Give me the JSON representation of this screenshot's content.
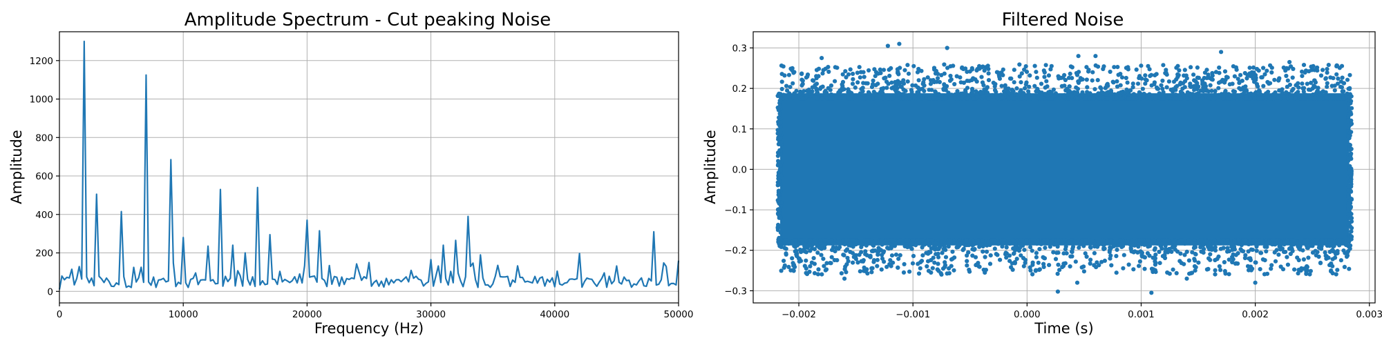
{
  "chart_data": [
    {
      "type": "line",
      "title": "Amplitude Spectrum - Cut peaking Noise",
      "xlabel": "Frequency (Hz)",
      "ylabel": "Amplitude",
      "xlim": [
        0,
        50000
      ],
      "ylim": [
        -60,
        1350
      ],
      "xticks": [
        0,
        10000,
        20000,
        30000,
        40000,
        50000
      ],
      "yticks": [
        0,
        200,
        400,
        600,
        800,
        1000,
        1200
      ],
      "grid": true,
      "color": "#1f77b4",
      "baseline_range": [
        20,
        80
      ],
      "peaks": [
        {
          "x": 2000,
          "y": 1300
        },
        {
          "x": 3000,
          "y": 505
        },
        {
          "x": 5000,
          "y": 415
        },
        {
          "x": 7000,
          "y": 1125
        },
        {
          "x": 9000,
          "y": 685
        },
        {
          "x": 10000,
          "y": 280
        },
        {
          "x": 12000,
          "y": 235
        },
        {
          "x": 13000,
          "y": 530
        },
        {
          "x": 14000,
          "y": 240
        },
        {
          "x": 15000,
          "y": 200
        },
        {
          "x": 16000,
          "y": 540
        },
        {
          "x": 17000,
          "y": 295
        },
        {
          "x": 20000,
          "y": 370
        },
        {
          "x": 21000,
          "y": 315
        },
        {
          "x": 25000,
          "y": 150
        },
        {
          "x": 30000,
          "y": 165
        },
        {
          "x": 31000,
          "y": 240
        },
        {
          "x": 32000,
          "y": 265
        },
        {
          "x": 33000,
          "y": 390
        },
        {
          "x": 34000,
          "y": 190
        },
        {
          "x": 48000,
          "y": 310
        },
        {
          "x": 50000,
          "y": 160
        }
      ]
    },
    {
      "type": "scatter",
      "title": "Filtered Noise",
      "xlabel": "Time (s)",
      "ylabel": "Amplitude",
      "xlim": [
        -0.0024,
        0.00305
      ],
      "ylim": [
        -0.33,
        0.34
      ],
      "xticks": [
        -0.002,
        -0.001,
        0.0,
        0.001,
        0.002,
        0.003
      ],
      "xtick_labels": [
        "−0.002",
        "−0.001",
        "0.000",
        "0.001",
        "0.002",
        "0.003"
      ],
      "yticks": [
        -0.3,
        -0.2,
        -0.1,
        0.0,
        0.1,
        0.2,
        0.3
      ],
      "ytick_labels": [
        "−0.3",
        "−0.2",
        "−0.1",
        "0.0",
        "0.1",
        "0.2",
        "0.3"
      ],
      "grid": true,
      "color": "#1f77b4",
      "data_x_range": [
        -0.00217,
        0.00283
      ],
      "dense_band": [
        -0.2,
        0.2
      ],
      "outliers": [
        {
          "x": -0.00122,
          "y": 0.305
        },
        {
          "x": -0.00112,
          "y": 0.31
        },
        {
          "x": -0.0007,
          "y": 0.3
        },
        {
          "x": 0.0017,
          "y": 0.29
        },
        {
          "x": -0.0018,
          "y": 0.275
        },
        {
          "x": 0.00045,
          "y": 0.28
        },
        {
          "x": 0.0023,
          "y": 0.265
        },
        {
          "x": 0.0006,
          "y": 0.28
        },
        {
          "x": 0.00027,
          "y": -0.302
        },
        {
          "x": 0.00109,
          "y": -0.305
        },
        {
          "x": 0.00044,
          "y": -0.28
        },
        {
          "x": 0.002,
          "y": -0.28
        },
        {
          "x": -0.0016,
          "y": -0.27
        },
        {
          "x": 0.0014,
          "y": -0.27
        },
        {
          "x": -0.00075,
          "y": -0.26
        },
        {
          "x": 0.0024,
          "y": -0.25
        }
      ]
    }
  ]
}
